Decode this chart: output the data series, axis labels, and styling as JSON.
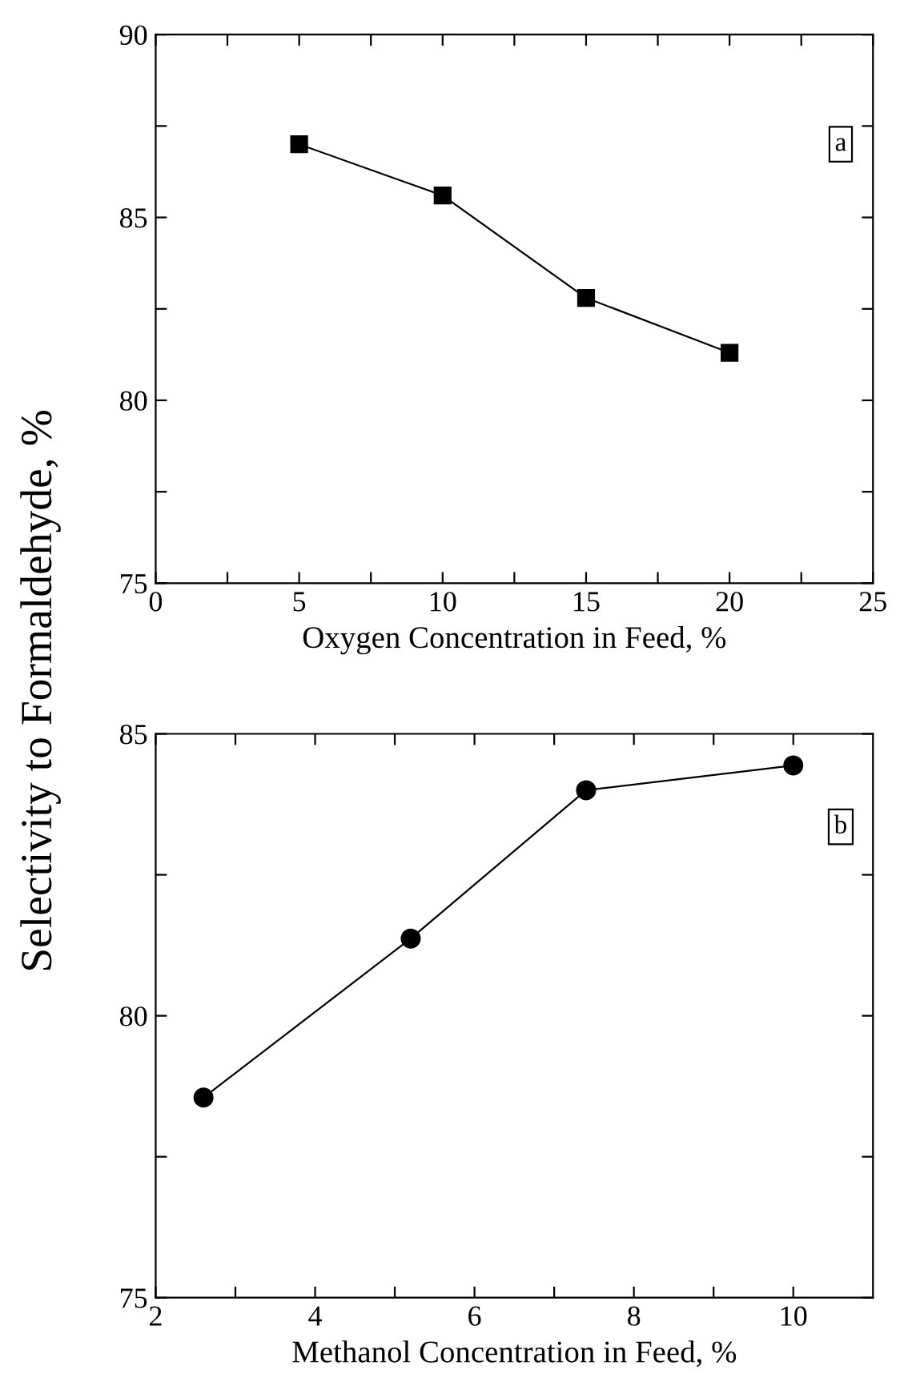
{
  "chart_data": [
    {
      "type": "line",
      "xlabel": "Oxygen Concentration in Feed, %",
      "ylabel": "Selectivity to Formaldehyde, %",
      "annotations": [
        "a"
      ],
      "x": [
        5,
        10,
        15,
        20
      ],
      "series": [
        {
          "color": "#000000",
          "values": [
            87.0,
            85.6,
            82.8,
            81.3
          ]
        }
      ],
      "marker": "square",
      "line_style": "solid",
      "grid": false,
      "legend": false,
      "xlim": [
        0,
        25
      ],
      "xticks": [
        0,
        {
          "value": 2.5,
          "label": null
        },
        5,
        {
          "value": 7.5,
          "label": null
        },
        10,
        {
          "value": 12.5,
          "label": null
        },
        15,
        {
          "value": 17.5,
          "label": null
        },
        20,
        {
          "value": 22.5,
          "label": null
        },
        25
      ],
      "ylim": [
        75,
        90
      ],
      "yticks": [
        75,
        {
          "value": 77.5,
          "label": null
        },
        80,
        {
          "value": 82.5,
          "label": null
        },
        85,
        {
          "value": 87.5,
          "label": null
        },
        90
      ]
    },
    {
      "type": "line",
      "xlabel": "Methanol Concentration in Feed, %",
      "annotations": [
        "b"
      ],
      "x": [
        2.6,
        5.2,
        7.4,
        10.0
      ],
      "series": [
        {
          "color": "#000000",
          "values": [
            78.55,
            81.37,
            84.0,
            84.44
          ]
        }
      ],
      "marker": "circle",
      "line_style": "solid",
      "grid": false,
      "legend": false,
      "xlim": [
        2,
        11
      ],
      "xticks": [
        2,
        {
          "value": 3,
          "label": null
        },
        4,
        {
          "value": 5,
          "label": null
        },
        6,
        {
          "value": 7,
          "label": null
        },
        8,
        {
          "value": 9,
          "label": null
        },
        10
      ],
      "ylim": [
        75,
        85
      ],
      "yticks": [
        75,
        {
          "value": 77.5,
          "label": null
        },
        80,
        {
          "value": 82.5,
          "label": null
        },
        85
      ]
    }
  ]
}
